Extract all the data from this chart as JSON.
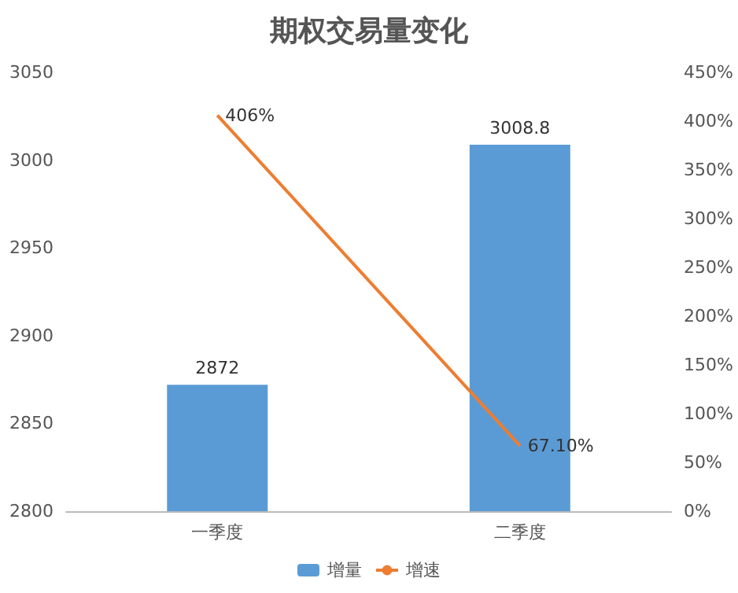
{
  "chart_data": {
    "type": "bar",
    "title": "期权交易量变化",
    "categories": [
      "一季度",
      "二季度"
    ],
    "series": [
      {
        "name": "增量",
        "color": "#5b9bd5",
        "values": [
          2872,
          3008.8
        ],
        "value_labels": [
          "2872",
          "3008.8"
        ]
      },
      {
        "name": "增速",
        "type": "line",
        "axis": "y2",
        "color": "#ed7d31",
        "values": [
          406,
          67.1
        ],
        "value_labels": [
          "406%",
          "67.10%"
        ]
      }
    ],
    "ylim": [
      2800,
      3050
    ],
    "yticks": [
      2800,
      2850,
      2900,
      2950,
      3000,
      3050
    ],
    "y2lim": [
      0,
      450
    ],
    "y2ticks": [
      {
        "value": 0,
        "label": "0%"
      },
      {
        "value": 50,
        "label": "50%"
      },
      {
        "value": 100,
        "label": "100%"
      },
      {
        "value": 150,
        "label": "150%"
      },
      {
        "value": 200,
        "label": "200%"
      },
      {
        "value": 250,
        "label": "250%"
      },
      {
        "value": 300,
        "label": "300%"
      },
      {
        "value": 350,
        "label": "350%"
      },
      {
        "value": 400,
        "label": "400%"
      },
      {
        "value": 450,
        "label": "450%"
      }
    ],
    "legend": "bottom",
    "marker": "none"
  }
}
